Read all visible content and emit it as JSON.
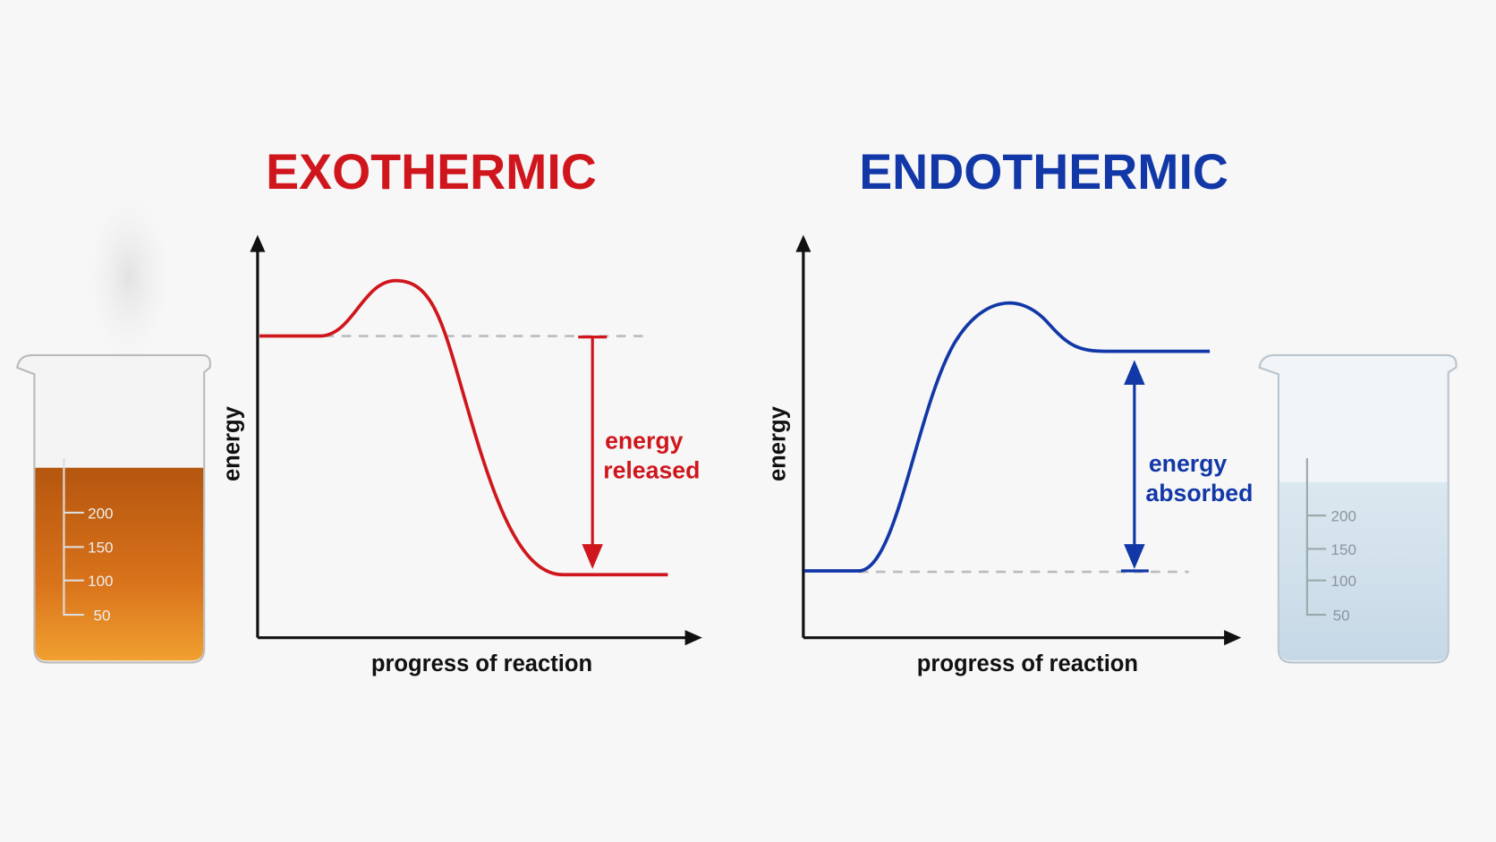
{
  "panels": [
    {
      "title": "EXOTHERMIC",
      "y_label": "energy",
      "x_label": "progress of reaction",
      "annotation": [
        "energy",
        "released"
      ],
      "beaker_marks": [
        "200",
        "150",
        "100",
        "50"
      ]
    },
    {
      "title": "ENDOTHERMIC",
      "y_label": "energy",
      "x_label": "progress of reaction",
      "annotation": [
        "energy",
        "absorbed"
      ],
      "beaker_marks": [
        "200",
        "150",
        "100",
        "50"
      ]
    }
  ]
}
